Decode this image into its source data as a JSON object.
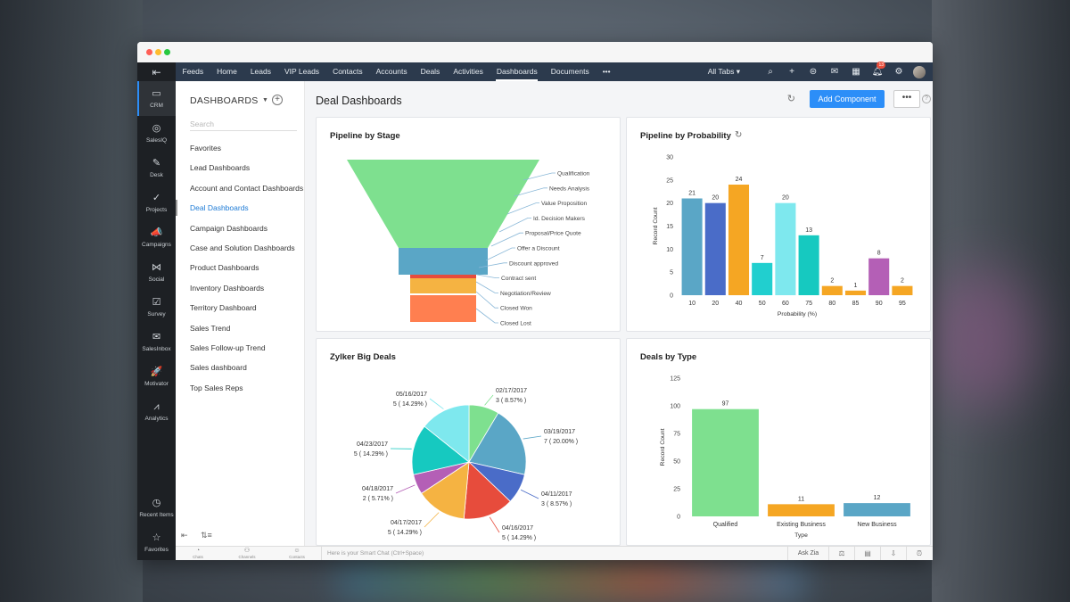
{
  "window": {
    "title": "Deal Dashboards"
  },
  "rail": {
    "items": [
      {
        "label": "CRM",
        "icon": "crm-icon",
        "glyph": "▭",
        "active": true
      },
      {
        "label": "SalesIQ",
        "icon": "salesiq-icon",
        "glyph": "◎"
      },
      {
        "label": "Desk",
        "icon": "desk-icon",
        "glyph": "✎"
      },
      {
        "label": "Projects",
        "icon": "projects-icon",
        "glyph": "✓"
      },
      {
        "label": "Campaigns",
        "icon": "campaigns-icon",
        "glyph": "📣"
      },
      {
        "label": "Social",
        "icon": "social-icon",
        "glyph": "⋈"
      },
      {
        "label": "Survey",
        "icon": "survey-icon",
        "glyph": "☑"
      },
      {
        "label": "SalesInbox",
        "icon": "salesinbox-icon",
        "glyph": "✉"
      },
      {
        "label": "Motivator",
        "icon": "motivator-icon",
        "glyph": "🚀"
      },
      {
        "label": "Analytics",
        "icon": "analytics-icon",
        "glyph": "⩘"
      }
    ],
    "bottom": [
      {
        "label": "Recent Items",
        "icon": "recent-items-icon",
        "glyph": "◷"
      },
      {
        "label": "Favorites",
        "icon": "favorites-icon",
        "glyph": "☆"
      }
    ]
  },
  "topnav": {
    "items": [
      "Feeds",
      "Home",
      "Leads",
      "VIP Leads",
      "Contacts",
      "Accounts",
      "Deals",
      "Activities",
      "Dashboards",
      "Documents",
      "•••"
    ],
    "active": "Dashboards",
    "all_tabs": "All Tabs ▾",
    "notification_count": "13"
  },
  "sidebar": {
    "heading": "DASHBOARDS",
    "search_placeholder": "Search",
    "items": [
      "Favorites",
      "Lead Dashboards",
      "Account and Contact Dashboards",
      "Deal Dashboards",
      "Campaign Dashboards",
      "Case and Solution Dashboards",
      "Product Dashboards",
      "Inventory Dashboards",
      "Territory Dashboard",
      "Sales Trend",
      "Sales Follow-up Trend",
      "Sales dashboard",
      "Top Sales Reps"
    ],
    "active_index": 3
  },
  "main": {
    "title": "Deal Dashboards",
    "add_component": "Add Component",
    "more": "•••"
  },
  "cards": {
    "pipeline_stage": "Pipeline by Stage",
    "pipeline_probability": "Pipeline by Probability",
    "big_deals": "Zylker Big Deals",
    "deals_type": "Deals by Type"
  },
  "bottombar": {
    "chats": "Chats",
    "channels": "Channels",
    "contacts": "Contacts",
    "smart_chat": "Here is your Smart Chat (Ctrl+Space)",
    "ask_zia": "Ask Zia"
  },
  "chart_data": [
    {
      "type": "funnel",
      "title": "Pipeline by Stage",
      "stages": [
        "Qualification",
        "Needs Analysis",
        "Value Proposition",
        "Id. Decision Makers",
        "Proposal/Price Quote",
        "Offer a Discount",
        "Discount approved",
        "Contract sent",
        "Negotiation/Review",
        "Closed Won",
        "Closed Lost"
      ],
      "colors": [
        "#7ee08f",
        "#5aa6c6",
        "#e74c3c",
        "#f5b342",
        "#f5b342",
        "#ff7f50"
      ]
    },
    {
      "type": "bar",
      "title": "Pipeline by Probability",
      "xlabel": "Probability (%)",
      "ylabel": "Record Count",
      "categories": [
        "10",
        "20",
        "40",
        "50",
        "60",
        "75",
        "80",
        "85",
        "90",
        "95"
      ],
      "values": [
        21,
        20,
        24,
        7,
        20,
        13,
        2,
        1,
        8,
        2
      ],
      "colors": [
        "#5aa6c6",
        "#4a6cc8",
        "#f5a623",
        "#21cfcf",
        "#7ee8ee",
        "#16c9c0",
        "#f5a623",
        "#f5a623",
        "#b45fb6",
        "#f5a623"
      ],
      "ylim": [
        0,
        30
      ],
      "yticks": [
        0,
        5,
        10,
        15,
        20,
        25,
        30
      ]
    },
    {
      "type": "pie",
      "title": "Zylker Big Deals",
      "slices": [
        {
          "label": "02/17/2017",
          "value": "3 ( 8.57% )",
          "pct": 8.57,
          "color": "#7ee08f"
        },
        {
          "label": "03/19/2017",
          "value": "7 ( 20.00% )",
          "pct": 20.0,
          "color": "#5aa6c6"
        },
        {
          "label": "04/11/2017",
          "value": "3 ( 8.57% )",
          "pct": 8.57,
          "color": "#4a6cc8"
        },
        {
          "label": "04/16/2017",
          "value": "5 ( 14.29% )",
          "pct": 14.29,
          "color": "#e74c3c"
        },
        {
          "label": "04/17/2017",
          "value": "5 ( 14.29% )",
          "pct": 14.29,
          "color": "#f5b342"
        },
        {
          "label": "04/18/2017",
          "value": "2 ( 5.71% )",
          "pct": 5.71,
          "color": "#b45fb6"
        },
        {
          "label": "04/23/2017",
          "value": "5 ( 14.29% )",
          "pct": 14.29,
          "color": "#16c9c0"
        },
        {
          "label": "05/16/2017",
          "value": "5 ( 14.29% )",
          "pct": 14.29,
          "color": "#7ee8ee"
        }
      ]
    },
    {
      "type": "bar",
      "title": "Deals by Type",
      "xlabel": "Type",
      "ylabel": "Record Count",
      "categories": [
        "Qualified",
        "Existing Business",
        "New Business"
      ],
      "values": [
        97,
        11,
        12
      ],
      "colors": [
        "#7ee08f",
        "#f5a623",
        "#5aa6c6"
      ],
      "ylim": [
        0,
        125
      ],
      "yticks": [
        0,
        25,
        50,
        75,
        100,
        125
      ]
    }
  ]
}
